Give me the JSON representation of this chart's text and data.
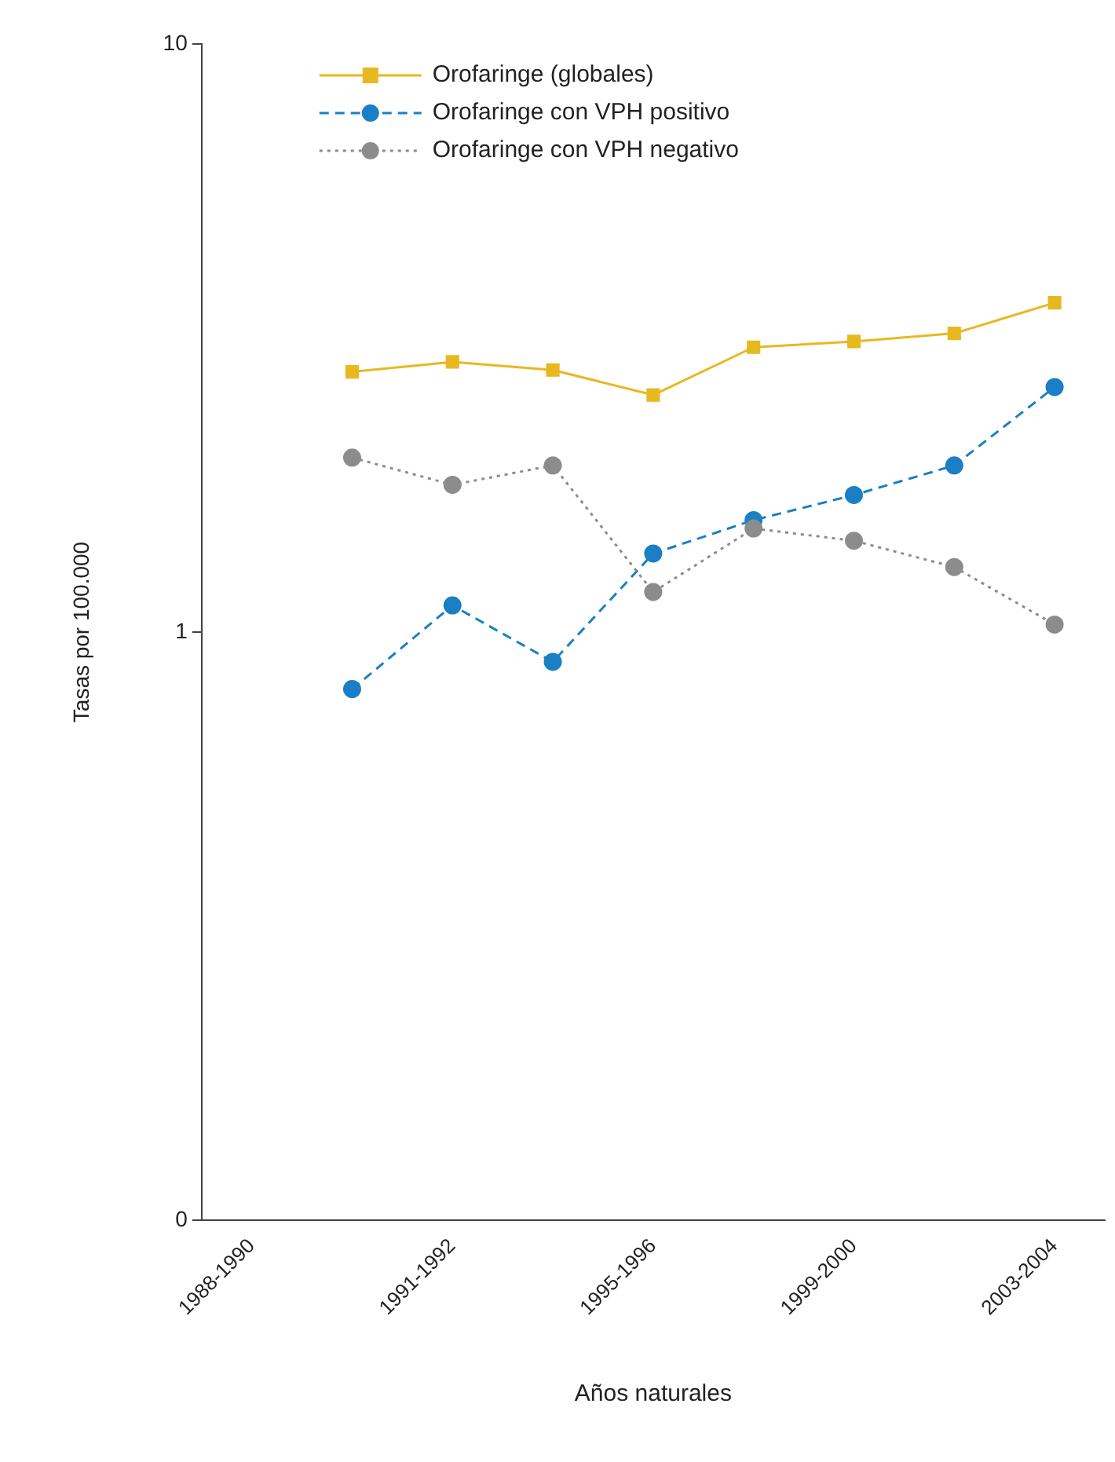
{
  "chart_data": {
    "type": "line",
    "xlabel": "Años naturales",
    "ylabel": "Tasas por 100.000",
    "categories": [
      "1988-1990",
      null,
      "1991-1992",
      null,
      "1995-1996",
      null,
      "1999-2000",
      null,
      "2003-2004"
    ],
    "series": [
      {
        "name": "Orofaringe (globales)",
        "color": "#e8b820",
        "marker": "square",
        "line_style": "solid",
        "values": [
          null,
          2.77,
          2.88,
          2.79,
          2.53,
          3.05,
          3.12,
          3.22,
          3.63
        ]
      },
      {
        "name": "Orofaringe con VPH positivo",
        "color": "#1a7fc4",
        "marker": "circle",
        "line_style": "dashed",
        "values": [
          null,
          0.8,
          1.11,
          0.89,
          1.36,
          1.55,
          1.71,
          1.92,
          2.61
        ]
      },
      {
        "name": "Orofaringe con VPH negativo",
        "color": "#8c8c8c",
        "marker": "circle",
        "line_style": "dotted",
        "values": [
          null,
          1.98,
          1.78,
          1.92,
          1.17,
          1.5,
          1.43,
          1.29,
          1.03
        ]
      }
    ],
    "log": "y",
    "ylim": [
      0.1,
      10
    ],
    "yticks": [
      {
        "value": 0.1,
        "label": "0"
      },
      1,
      10
    ],
    "grid": false,
    "legend": "top left"
  }
}
